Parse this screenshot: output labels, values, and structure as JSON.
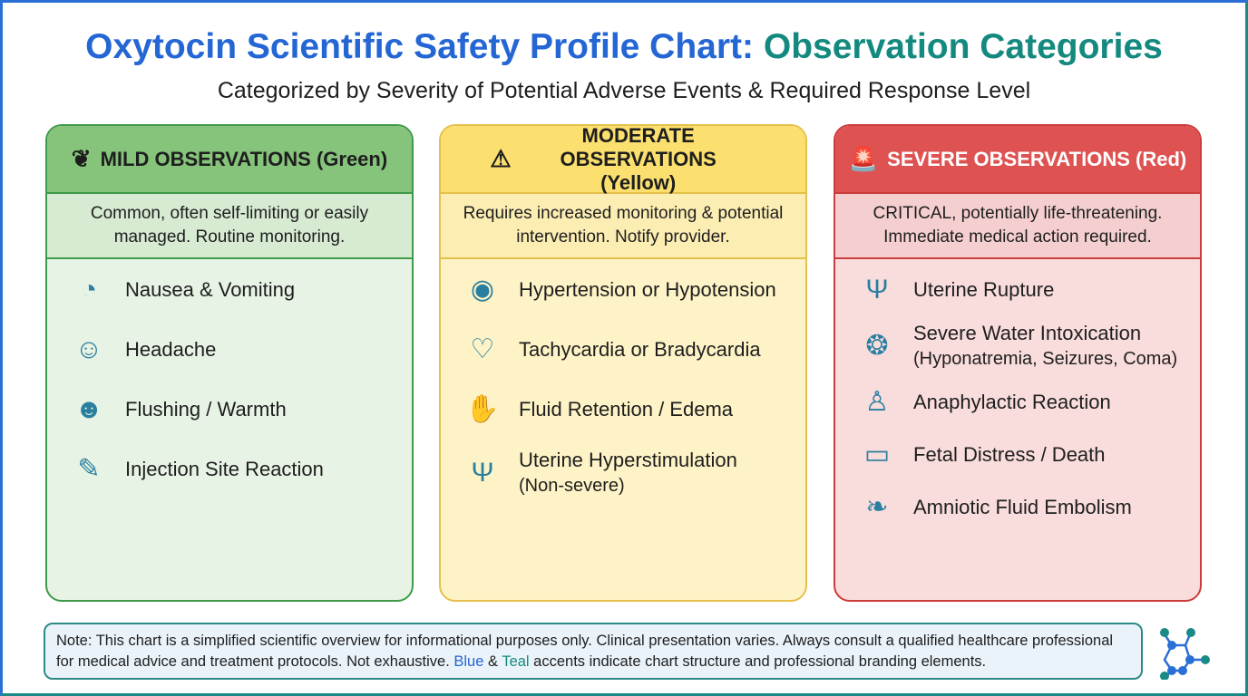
{
  "title": {
    "part1": "Oxytocin Scientific Safety Profile Chart:",
    "part2": "Observation Categories"
  },
  "subtitle": "Categorized by Severity of Potential Adverse Events & Required Response Level",
  "categories": [
    {
      "header": "MILD OBSERVATIONS (Green)",
      "icon": "leaf-icon",
      "description": "Common, often self-limiting or easily managed. Routine monitoring.",
      "items": [
        {
          "label": "Nausea & Vomiting",
          "icon": "stomach-icon"
        },
        {
          "label": "Headache",
          "icon": "head-icon"
        },
        {
          "label": "Flushing / Warmth",
          "icon": "face-flush-icon"
        },
        {
          "label": "Injection Site Reaction",
          "icon": "arm-injection-icon"
        }
      ]
    },
    {
      "header": "MODERATE OBSERVATIONS (Yellow)",
      "icon": "warning-icon",
      "description": "Requires increased monitoring & potential intervention. Notify provider.",
      "items": [
        {
          "label": "Hypertension or Hypotension",
          "icon": "blood-pressure-icon"
        },
        {
          "label": "Tachycardia or Bradycardia",
          "icon": "heart-pulse-icon"
        },
        {
          "label": "Fluid Retention / Edema",
          "icon": "swollen-hand-icon"
        },
        {
          "label": "Uterine Hyperstimulation",
          "sub": "(Non-severe)",
          "icon": "uterus-icon"
        }
      ]
    },
    {
      "header": "SEVERE OBSERVATIONS (Red)",
      "icon": "alarm-icon",
      "description": "CRITICAL, potentially life-threatening. Immediate medical action required.",
      "items": [
        {
          "label": "Uterine Rupture",
          "icon": "uterus-icon"
        },
        {
          "label": "Severe Water Intoxication",
          "sub": "(Hyponatremia, Seizures, Coma)",
          "icon": "brain-icon"
        },
        {
          "label": "Anaphylactic Reaction",
          "icon": "person-rash-icon"
        },
        {
          "label": "Fetal Distress / Death",
          "icon": "monitor-icon"
        },
        {
          "label": "Amniotic Fluid Embolism",
          "icon": "lungs-icon"
        }
      ]
    }
  ],
  "note": {
    "text1": "Note: This chart is a simplified scientific overview for informational purposes only. Clinical presentation varies. Always consult a qualified healthcare professional for medical advice and treatment protocols. Not exhaustive. ",
    "blue": "Blue",
    "amp": " & ",
    "teal": "Teal",
    "text2": " accents indicate chart structure and professional branding elements."
  },
  "colors": {
    "blue": "#2466d4",
    "teal": "#14897f",
    "green": "#86c47b",
    "yellow": "#fbe06f",
    "red": "#de5252"
  }
}
